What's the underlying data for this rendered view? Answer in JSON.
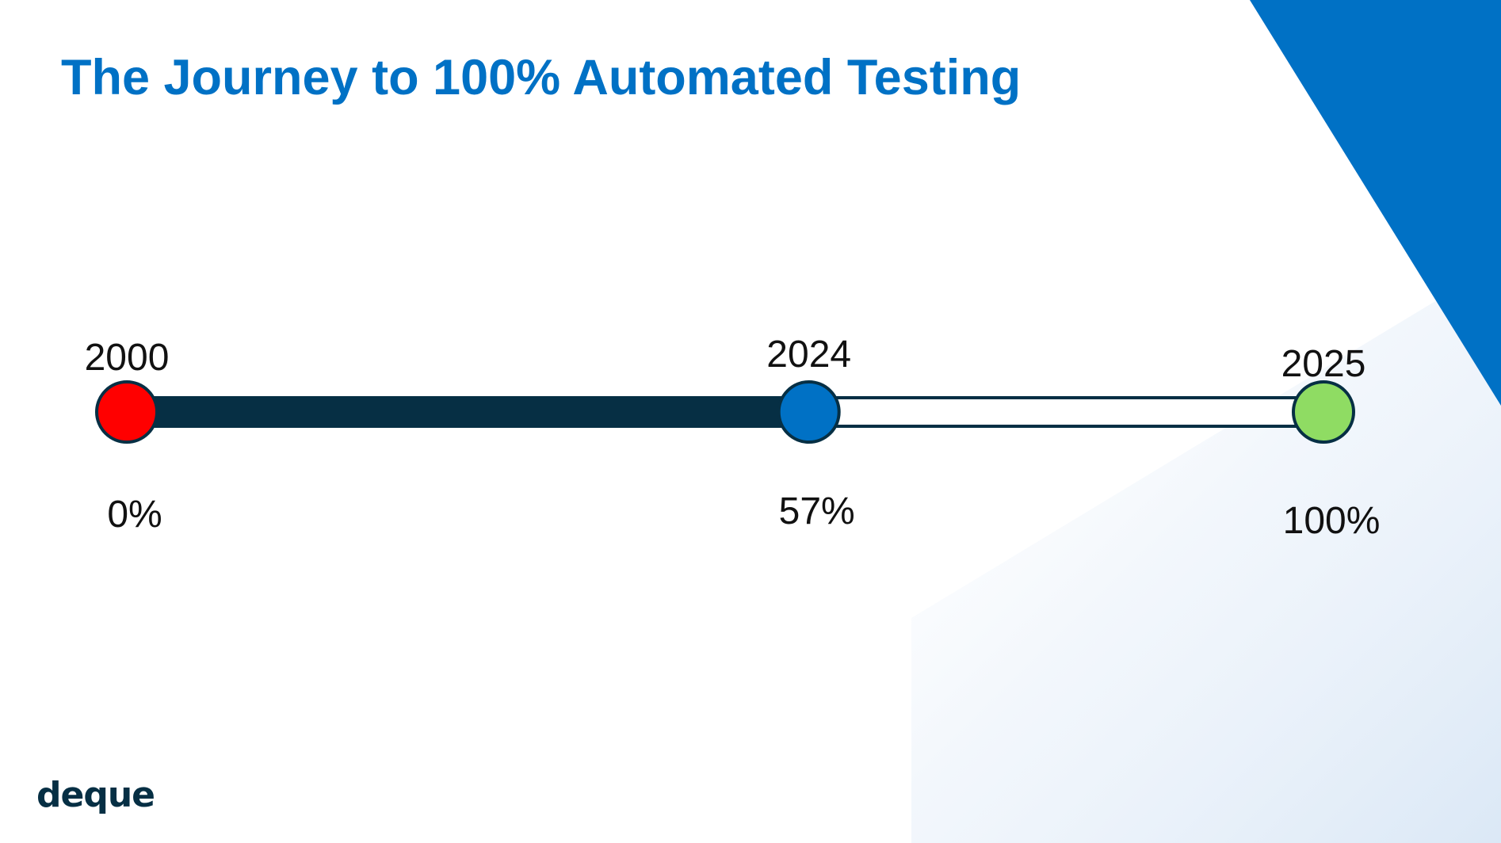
{
  "slide": {
    "title": "The Journey to 100% Automated Testing",
    "logo_text": "deque"
  },
  "timeline": {
    "milestones": [
      {
        "year": "2000",
        "percent_label": "0%",
        "percent": 0,
        "color": "#ff0000"
      },
      {
        "year": "2024",
        "percent_label": "57%",
        "percent": 57,
        "color": "#0071c5"
      },
      {
        "year": "2025",
        "percent_label": "100%",
        "percent": 100,
        "color": "#8fdc63"
      }
    ],
    "progress_percent": 57
  },
  "colors": {
    "title": "#0071c5",
    "accent_blue": "#0071c5",
    "track_dark": "#062f44",
    "marker_outline": "#062f44",
    "logo": "#062f44",
    "background_gradient_light": "#e3eef9"
  }
}
